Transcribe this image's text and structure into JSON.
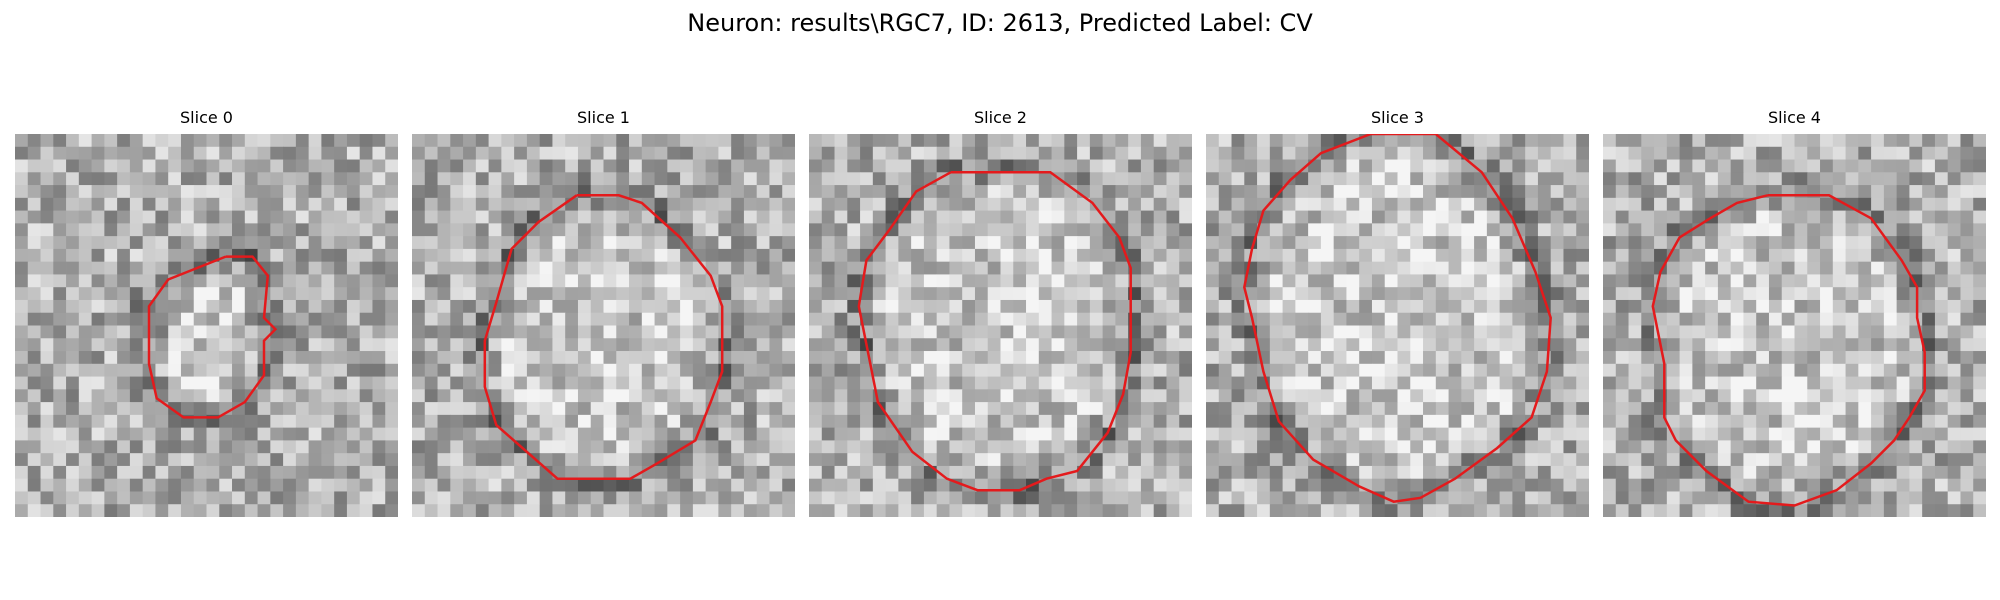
{
  "figure": {
    "title": "Neuron: results\\RGC7, ID: 2613, Predicted Label: CV"
  },
  "panels": [
    {
      "label": "Slice 0",
      "contour_color": "#e41a1c",
      "contour": [
        [
          0.55,
          0.32
        ],
        [
          0.62,
          0.32
        ],
        [
          0.66,
          0.37
        ],
        [
          0.65,
          0.48
        ],
        [
          0.68,
          0.51
        ],
        [
          0.65,
          0.54
        ],
        [
          0.65,
          0.63
        ],
        [
          0.6,
          0.7
        ],
        [
          0.53,
          0.74
        ],
        [
          0.44,
          0.74
        ],
        [
          0.37,
          0.69
        ],
        [
          0.35,
          0.6
        ],
        [
          0.35,
          0.45
        ],
        [
          0.4,
          0.38
        ]
      ]
    },
    {
      "label": "Slice 1",
      "contour_color": "#e41a1c",
      "contour": [
        [
          0.43,
          0.16
        ],
        [
          0.54,
          0.16
        ],
        [
          0.6,
          0.18
        ],
        [
          0.7,
          0.27
        ],
        [
          0.78,
          0.37
        ],
        [
          0.81,
          0.45
        ],
        [
          0.81,
          0.62
        ],
        [
          0.78,
          0.7
        ],
        [
          0.74,
          0.8
        ],
        [
          0.64,
          0.86
        ],
        [
          0.57,
          0.9
        ],
        [
          0.38,
          0.9
        ],
        [
          0.22,
          0.76
        ],
        [
          0.19,
          0.66
        ],
        [
          0.19,
          0.54
        ],
        [
          0.22,
          0.44
        ],
        [
          0.26,
          0.3
        ],
        [
          0.33,
          0.23
        ]
      ]
    },
    {
      "label": "Slice 2",
      "contour_color": "#e41a1c",
      "contour": [
        [
          0.37,
          0.1
        ],
        [
          0.63,
          0.1
        ],
        [
          0.74,
          0.18
        ],
        [
          0.81,
          0.27
        ],
        [
          0.84,
          0.35
        ],
        [
          0.84,
          0.57
        ],
        [
          0.82,
          0.68
        ],
        [
          0.78,
          0.78
        ],
        [
          0.7,
          0.88
        ],
        [
          0.62,
          0.9
        ],
        [
          0.55,
          0.93
        ],
        [
          0.44,
          0.93
        ],
        [
          0.36,
          0.9
        ],
        [
          0.27,
          0.83
        ],
        [
          0.18,
          0.7
        ],
        [
          0.16,
          0.6
        ],
        [
          0.13,
          0.45
        ],
        [
          0.15,
          0.33
        ],
        [
          0.21,
          0.25
        ],
        [
          0.28,
          0.15
        ]
      ]
    },
    {
      "label": "Slice 3",
      "contour_color": "#e41a1c",
      "contour": [
        [
          0.43,
          0.0
        ],
        [
          0.6,
          0.0
        ],
        [
          0.72,
          0.1
        ],
        [
          0.8,
          0.22
        ],
        [
          0.86,
          0.36
        ],
        [
          0.9,
          0.48
        ],
        [
          0.89,
          0.62
        ],
        [
          0.85,
          0.74
        ],
        [
          0.76,
          0.82
        ],
        [
          0.65,
          0.9
        ],
        [
          0.56,
          0.95
        ],
        [
          0.49,
          0.96
        ],
        [
          0.4,
          0.92
        ],
        [
          0.28,
          0.85
        ],
        [
          0.19,
          0.75
        ],
        [
          0.15,
          0.62
        ],
        [
          0.12,
          0.48
        ],
        [
          0.1,
          0.4
        ],
        [
          0.12,
          0.3
        ],
        [
          0.15,
          0.2
        ],
        [
          0.22,
          0.12
        ],
        [
          0.3,
          0.05
        ]
      ]
    },
    {
      "label": "Slice 4",
      "contour_color": "#e41a1c",
      "contour": [
        [
          0.43,
          0.16
        ],
        [
          0.59,
          0.16
        ],
        [
          0.7,
          0.22
        ],
        [
          0.78,
          0.33
        ],
        [
          0.82,
          0.4
        ],
        [
          0.82,
          0.48
        ],
        [
          0.84,
          0.57
        ],
        [
          0.84,
          0.67
        ],
        [
          0.8,
          0.74
        ],
        [
          0.76,
          0.8
        ],
        [
          0.7,
          0.86
        ],
        [
          0.61,
          0.93
        ],
        [
          0.5,
          0.97
        ],
        [
          0.38,
          0.96
        ],
        [
          0.27,
          0.88
        ],
        [
          0.19,
          0.8
        ],
        [
          0.16,
          0.74
        ],
        [
          0.16,
          0.6
        ],
        [
          0.13,
          0.45
        ],
        [
          0.15,
          0.36
        ],
        [
          0.2,
          0.27
        ],
        [
          0.28,
          0.22
        ],
        [
          0.35,
          0.18
        ]
      ]
    }
  ]
}
